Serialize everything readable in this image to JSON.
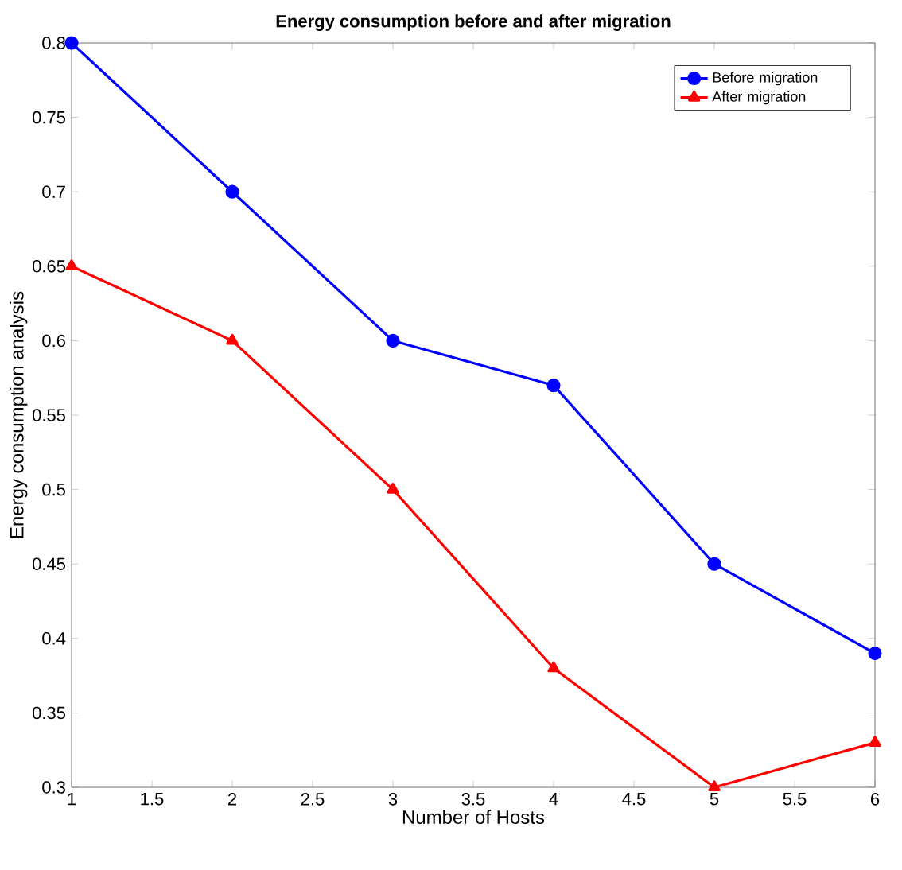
{
  "chart_data": {
    "type": "line",
    "title": "Energy consumption before and after migration",
    "xlabel": "Number of Hosts",
    "ylabel": "Energy consumption analysis",
    "x": [
      1,
      2,
      3,
      4,
      5,
      6
    ],
    "series": [
      {
        "name": "Before migration",
        "color": "#0000ff",
        "marker": "circle",
        "values": [
          0.8,
          0.7,
          0.6,
          0.57,
          0.45,
          0.39
        ]
      },
      {
        "name": "After migration",
        "color": "#ff0000",
        "marker": "triangle",
        "values": [
          0.65,
          0.6,
          0.5,
          0.38,
          0.3,
          0.33
        ]
      }
    ],
    "xlim": [
      1,
      6
    ],
    "ylim": [
      0.3,
      0.8
    ],
    "xticks": [
      1,
      1.5,
      2,
      2.5,
      3,
      3.5,
      4,
      4.5,
      5,
      5.5,
      6
    ],
    "yticks": [
      0.3,
      0.35,
      0.4,
      0.45,
      0.5,
      0.55,
      0.6,
      0.65,
      0.7,
      0.75,
      0.8
    ],
    "legend": "top right",
    "grid": false,
    "line_style": "solid"
  }
}
